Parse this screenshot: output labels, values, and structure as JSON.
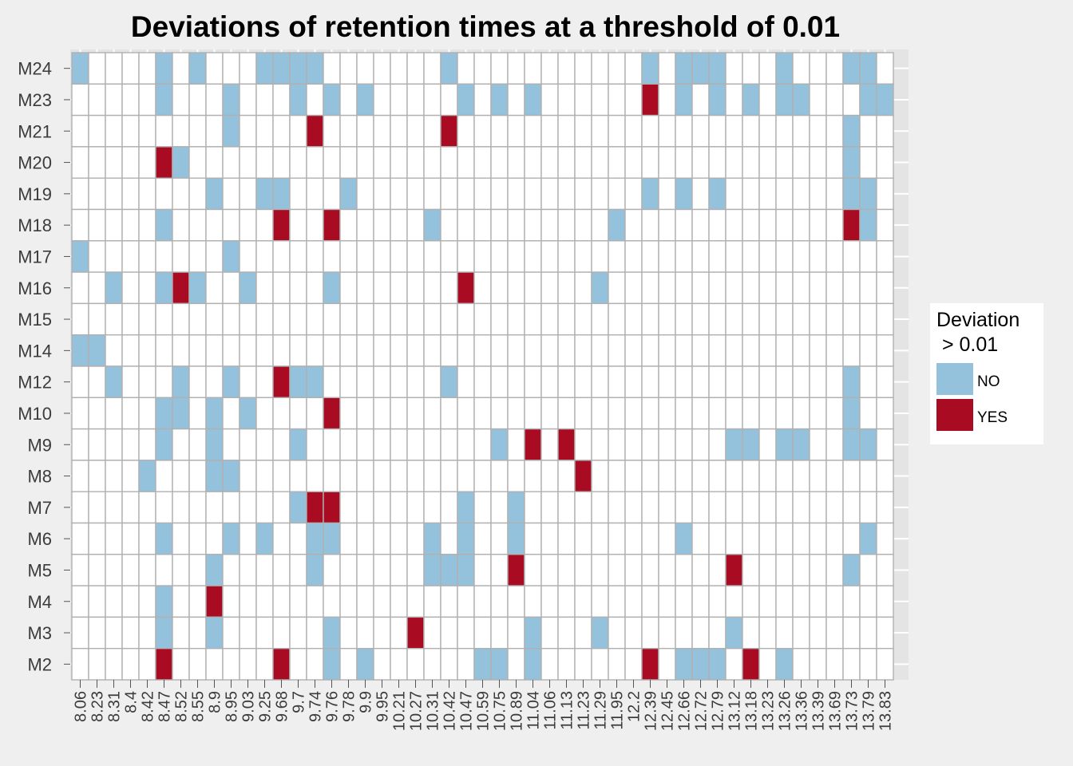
{
  "chart_data": {
    "type": "heatmap",
    "title": "Deviations of retention times at a threshold of 0.01",
    "xlabel": "",
    "ylabel": "",
    "x": [
      "8.06",
      "8.23",
      "8.31",
      "8.4",
      "8.42",
      "8.47",
      "8.52",
      "8.55",
      "8.9",
      "8.95",
      "9.03",
      "9.25",
      "9.68",
      "9.7",
      "9.74",
      "9.76",
      "9.78",
      "9.9",
      "9.95",
      "10.21",
      "10.27",
      "10.31",
      "10.42",
      "10.47",
      "10.59",
      "10.75",
      "10.89",
      "11.04",
      "11.06",
      "11.13",
      "11.23",
      "11.29",
      "11.95",
      "12.2",
      "12.39",
      "12.45",
      "12.66",
      "12.72",
      "12.79",
      "13.12",
      "13.18",
      "13.23",
      "13.26",
      "13.36",
      "13.39",
      "13.69",
      "13.73",
      "13.79",
      "13.83"
    ],
    "y": [
      "M24",
      "M23",
      "M21",
      "M20",
      "M19",
      "M18",
      "M17",
      "M16",
      "M15",
      "M14",
      "M12",
      "M10",
      "M9",
      "M8",
      "M7",
      "M6",
      "M5",
      "M4",
      "M3",
      "M2"
    ],
    "legend": {
      "title_lines": [
        "Deviation",
        " > 0.01"
      ],
      "position": "right",
      "entries": [
        {
          "label": "NO",
          "color": "#94c2dd"
        },
        {
          "label": "YES",
          "color": "#a80b22"
        }
      ]
    },
    "grid": true,
    "cells": [
      {
        "y": "M24",
        "x": "8.06",
        "v": "NO"
      },
      {
        "y": "M24",
        "x": "8.47",
        "v": "NO"
      },
      {
        "y": "M24",
        "x": "8.55",
        "v": "NO"
      },
      {
        "y": "M24",
        "x": "9.25",
        "v": "NO"
      },
      {
        "y": "M24",
        "x": "9.68",
        "v": "NO"
      },
      {
        "y": "M24",
        "x": "9.7",
        "v": "NO"
      },
      {
        "y": "M24",
        "x": "9.74",
        "v": "NO"
      },
      {
        "y": "M24",
        "x": "10.42",
        "v": "NO"
      },
      {
        "y": "M24",
        "x": "12.39",
        "v": "NO"
      },
      {
        "y": "M24",
        "x": "12.66",
        "v": "NO"
      },
      {
        "y": "M24",
        "x": "12.72",
        "v": "NO"
      },
      {
        "y": "M24",
        "x": "12.79",
        "v": "NO"
      },
      {
        "y": "M24",
        "x": "13.26",
        "v": "NO"
      },
      {
        "y": "M24",
        "x": "13.73",
        "v": "NO"
      },
      {
        "y": "M24",
        "x": "13.79",
        "v": "NO"
      },
      {
        "y": "M23",
        "x": "8.47",
        "v": "NO"
      },
      {
        "y": "M23",
        "x": "8.95",
        "v": "NO"
      },
      {
        "y": "M23",
        "x": "9.7",
        "v": "NO"
      },
      {
        "y": "M23",
        "x": "9.76",
        "v": "NO"
      },
      {
        "y": "M23",
        "x": "9.9",
        "v": "NO"
      },
      {
        "y": "M23",
        "x": "10.47",
        "v": "NO"
      },
      {
        "y": "M23",
        "x": "10.75",
        "v": "NO"
      },
      {
        "y": "M23",
        "x": "11.04",
        "v": "NO"
      },
      {
        "y": "M23",
        "x": "12.39",
        "v": "YES"
      },
      {
        "y": "M23",
        "x": "12.66",
        "v": "NO"
      },
      {
        "y": "M23",
        "x": "12.79",
        "v": "NO"
      },
      {
        "y": "M23",
        "x": "13.18",
        "v": "NO"
      },
      {
        "y": "M23",
        "x": "13.26",
        "v": "NO"
      },
      {
        "y": "M23",
        "x": "13.36",
        "v": "NO"
      },
      {
        "y": "M23",
        "x": "13.79",
        "v": "NO"
      },
      {
        "y": "M23",
        "x": "13.83",
        "v": "NO"
      },
      {
        "y": "M21",
        "x": "8.95",
        "v": "NO"
      },
      {
        "y": "M21",
        "x": "9.74",
        "v": "YES"
      },
      {
        "y": "M21",
        "x": "10.42",
        "v": "YES"
      },
      {
        "y": "M21",
        "x": "13.73",
        "v": "NO"
      },
      {
        "y": "M20",
        "x": "8.47",
        "v": "YES"
      },
      {
        "y": "M20",
        "x": "8.52",
        "v": "NO"
      },
      {
        "y": "M20",
        "x": "13.73",
        "v": "NO"
      },
      {
        "y": "M19",
        "x": "8.9",
        "v": "NO"
      },
      {
        "y": "M19",
        "x": "9.25",
        "v": "NO"
      },
      {
        "y": "M19",
        "x": "9.68",
        "v": "NO"
      },
      {
        "y": "M19",
        "x": "9.78",
        "v": "NO"
      },
      {
        "y": "M19",
        "x": "12.39",
        "v": "NO"
      },
      {
        "y": "M19",
        "x": "12.66",
        "v": "NO"
      },
      {
        "y": "M19",
        "x": "12.79",
        "v": "NO"
      },
      {
        "y": "M19",
        "x": "13.73",
        "v": "NO"
      },
      {
        "y": "M19",
        "x": "13.79",
        "v": "NO"
      },
      {
        "y": "M18",
        "x": "8.47",
        "v": "NO"
      },
      {
        "y": "M18",
        "x": "9.68",
        "v": "YES"
      },
      {
        "y": "M18",
        "x": "9.76",
        "v": "YES"
      },
      {
        "y": "M18",
        "x": "10.31",
        "v": "NO"
      },
      {
        "y": "M18",
        "x": "11.95",
        "v": "NO"
      },
      {
        "y": "M18",
        "x": "13.73",
        "v": "YES"
      },
      {
        "y": "M18",
        "x": "13.79",
        "v": "NO"
      },
      {
        "y": "M17",
        "x": "8.06",
        "v": "NO"
      },
      {
        "y": "M17",
        "x": "8.95",
        "v": "NO"
      },
      {
        "y": "M16",
        "x": "8.31",
        "v": "NO"
      },
      {
        "y": "M16",
        "x": "8.47",
        "v": "NO"
      },
      {
        "y": "M16",
        "x": "8.52",
        "v": "YES"
      },
      {
        "y": "M16",
        "x": "8.55",
        "v": "NO"
      },
      {
        "y": "M16",
        "x": "9.03",
        "v": "NO"
      },
      {
        "y": "M16",
        "x": "9.76",
        "v": "NO"
      },
      {
        "y": "M16",
        "x": "10.47",
        "v": "YES"
      },
      {
        "y": "M16",
        "x": "11.29",
        "v": "NO"
      },
      {
        "y": "M14",
        "x": "8.06",
        "v": "NO"
      },
      {
        "y": "M14",
        "x": "8.23",
        "v": "NO"
      },
      {
        "y": "M12",
        "x": "8.31",
        "v": "NO"
      },
      {
        "y": "M12",
        "x": "8.52",
        "v": "NO"
      },
      {
        "y": "M12",
        "x": "8.95",
        "v": "NO"
      },
      {
        "y": "M12",
        "x": "9.68",
        "v": "YES"
      },
      {
        "y": "M12",
        "x": "9.7",
        "v": "NO"
      },
      {
        "y": "M12",
        "x": "9.74",
        "v": "NO"
      },
      {
        "y": "M12",
        "x": "10.42",
        "v": "NO"
      },
      {
        "y": "M12",
        "x": "13.73",
        "v": "NO"
      },
      {
        "y": "M10",
        "x": "8.47",
        "v": "NO"
      },
      {
        "y": "M10",
        "x": "8.52",
        "v": "NO"
      },
      {
        "y": "M10",
        "x": "8.9",
        "v": "NO"
      },
      {
        "y": "M10",
        "x": "9.03",
        "v": "NO"
      },
      {
        "y": "M10",
        "x": "9.76",
        "v": "YES"
      },
      {
        "y": "M10",
        "x": "13.73",
        "v": "NO"
      },
      {
        "y": "M9",
        "x": "8.47",
        "v": "NO"
      },
      {
        "y": "M9",
        "x": "8.9",
        "v": "NO"
      },
      {
        "y": "M9",
        "x": "9.7",
        "v": "NO"
      },
      {
        "y": "M9",
        "x": "10.75",
        "v": "NO"
      },
      {
        "y": "M9",
        "x": "11.04",
        "v": "YES"
      },
      {
        "y": "M9",
        "x": "11.13",
        "v": "YES"
      },
      {
        "y": "M9",
        "x": "13.12",
        "v": "NO"
      },
      {
        "y": "M9",
        "x": "13.18",
        "v": "NO"
      },
      {
        "y": "M9",
        "x": "13.26",
        "v": "NO"
      },
      {
        "y": "M9",
        "x": "13.36",
        "v": "NO"
      },
      {
        "y": "M9",
        "x": "13.73",
        "v": "NO"
      },
      {
        "y": "M9",
        "x": "13.79",
        "v": "NO"
      },
      {
        "y": "M8",
        "x": "8.42",
        "v": "NO"
      },
      {
        "y": "M8",
        "x": "8.9",
        "v": "NO"
      },
      {
        "y": "M8",
        "x": "8.95",
        "v": "NO"
      },
      {
        "y": "M8",
        "x": "11.23",
        "v": "YES"
      },
      {
        "y": "M7",
        "x": "9.7",
        "v": "NO"
      },
      {
        "y": "M7",
        "x": "9.74",
        "v": "YES"
      },
      {
        "y": "M7",
        "x": "9.76",
        "v": "YES"
      },
      {
        "y": "M7",
        "x": "10.47",
        "v": "NO"
      },
      {
        "y": "M7",
        "x": "10.89",
        "v": "NO"
      },
      {
        "y": "M6",
        "x": "8.47",
        "v": "NO"
      },
      {
        "y": "M6",
        "x": "8.95",
        "v": "NO"
      },
      {
        "y": "M6",
        "x": "9.25",
        "v": "NO"
      },
      {
        "y": "M6",
        "x": "9.74",
        "v": "NO"
      },
      {
        "y": "M6",
        "x": "9.76",
        "v": "NO"
      },
      {
        "y": "M6",
        "x": "10.31",
        "v": "NO"
      },
      {
        "y": "M6",
        "x": "10.47",
        "v": "NO"
      },
      {
        "y": "M6",
        "x": "10.89",
        "v": "NO"
      },
      {
        "y": "M6",
        "x": "12.66",
        "v": "NO"
      },
      {
        "y": "M6",
        "x": "13.79",
        "v": "NO"
      },
      {
        "y": "M5",
        "x": "8.9",
        "v": "NO"
      },
      {
        "y": "M5",
        "x": "9.74",
        "v": "NO"
      },
      {
        "y": "M5",
        "x": "10.31",
        "v": "NO"
      },
      {
        "y": "M5",
        "x": "10.42",
        "v": "NO"
      },
      {
        "y": "M5",
        "x": "10.47",
        "v": "NO"
      },
      {
        "y": "M5",
        "x": "10.89",
        "v": "YES"
      },
      {
        "y": "M5",
        "x": "13.12",
        "v": "YES"
      },
      {
        "y": "M5",
        "x": "13.73",
        "v": "NO"
      },
      {
        "y": "M4",
        "x": "8.47",
        "v": "NO"
      },
      {
        "y": "M4",
        "x": "8.9",
        "v": "YES"
      },
      {
        "y": "M3",
        "x": "8.47",
        "v": "NO"
      },
      {
        "y": "M3",
        "x": "8.9",
        "v": "NO"
      },
      {
        "y": "M3",
        "x": "9.76",
        "v": "NO"
      },
      {
        "y": "M3",
        "x": "10.27",
        "v": "YES"
      },
      {
        "y": "M3",
        "x": "11.04",
        "v": "NO"
      },
      {
        "y": "M3",
        "x": "11.29",
        "v": "NO"
      },
      {
        "y": "M3",
        "x": "13.12",
        "v": "NO"
      },
      {
        "y": "M2",
        "x": "8.47",
        "v": "YES"
      },
      {
        "y": "M2",
        "x": "9.68",
        "v": "YES"
      },
      {
        "y": "M2",
        "x": "9.76",
        "v": "NO"
      },
      {
        "y": "M2",
        "x": "9.9",
        "v": "NO"
      },
      {
        "y": "M2",
        "x": "10.59",
        "v": "NO"
      },
      {
        "y": "M2",
        "x": "10.75",
        "v": "NO"
      },
      {
        "y": "M2",
        "x": "11.04",
        "v": "NO"
      },
      {
        "y": "M2",
        "x": "12.39",
        "v": "YES"
      },
      {
        "y": "M2",
        "x": "12.66",
        "v": "NO"
      },
      {
        "y": "M2",
        "x": "12.72",
        "v": "NO"
      },
      {
        "y": "M2",
        "x": "12.79",
        "v": "NO"
      },
      {
        "y": "M2",
        "x": "13.18",
        "v": "YES"
      },
      {
        "y": "M2",
        "x": "13.26",
        "v": "NO"
      }
    ],
    "colors": {
      "page_background": "#efefef",
      "panel_background": "#e4e4e4",
      "tile_fill": "#ffffff",
      "tile_border": "#b0b0b0",
      "gridline": "#ffffff",
      "tick_text": "#3c3c3c"
    }
  }
}
